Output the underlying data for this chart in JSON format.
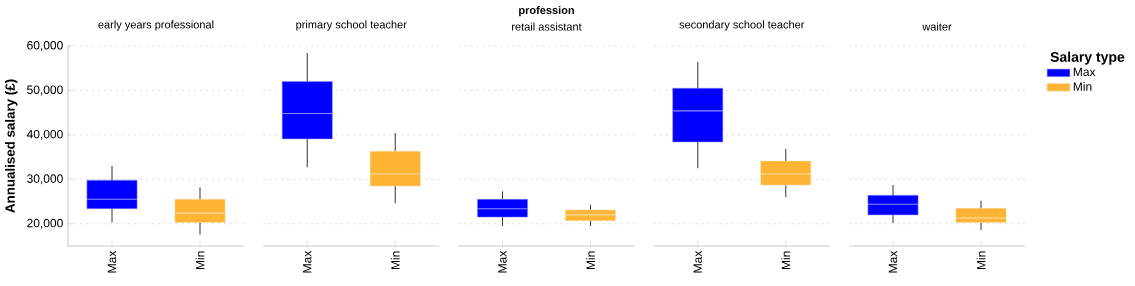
{
  "chart_data": [
    {
      "type": "box",
      "title": "early years professional",
      "ylabel": "Annualised salary (£)",
      "categories": [
        "Max",
        "Min"
      ],
      "series": [
        {
          "color": "#0000ff",
          "boxes": [
            {
              "low": 20300,
              "q1": 23400,
              "median": 25500,
              "q3": 29800,
              "high": 33000
            },
            null
          ]
        },
        {
          "color": "#fdb333",
          "boxes": [
            null,
            {
              "low": 17600,
              "q1": 20300,
              "median": 22400,
              "q3": 25500,
              "high": 28200
            }
          ]
        }
      ],
      "ylim": [
        15000,
        60000
      ],
      "yticks": [
        {
          "value": 20000,
          "label": "20,000"
        },
        {
          "value": 30000,
          "label": "30,000"
        },
        {
          "value": 40000,
          "label": "40,000"
        },
        {
          "value": 50000,
          "label": "50,000"
        },
        {
          "value": 60000,
          "label": "60,000"
        }
      ],
      "grid": "y"
    },
    {
      "type": "box",
      "title": "primary school teacher",
      "categories": [
        "Max",
        "Min"
      ],
      "series": [
        {
          "color": "#0000ff",
          "boxes": [
            {
              "low": 32700,
              "q1": 39100,
              "median": 44800,
              "q3": 52000,
              "high": 58400
            },
            null
          ]
        },
        {
          "color": "#fdb333",
          "boxes": [
            null,
            {
              "low": 24600,
              "q1": 28500,
              "median": 31200,
              "q3": 36300,
              "high": 40400
            }
          ]
        }
      ],
      "ylim": [
        15000,
        60000
      ],
      "yticks": [
        20000,
        30000,
        40000,
        50000,
        60000
      ],
      "grid": "y",
      "tick_labels": "x"
    },
    {
      "type": "box",
      "title": "retail assistant",
      "annotations": [
        "profession"
      ],
      "categories": [
        "Max",
        "Min"
      ],
      "series": [
        {
          "color": "#0000ff",
          "boxes": [
            {
              "low": 19500,
              "q1": 21500,
              "median": 23400,
              "q3": 25500,
              "high": 27300
            },
            null
          ]
        },
        {
          "color": "#fdb333",
          "boxes": [
            null,
            {
              "low": 19500,
              "q1": 20700,
              "median": 22000,
              "q3": 23100,
              "high": 24300
            }
          ]
        }
      ],
      "ylim": [
        15000,
        60000
      ],
      "yticks": [
        20000,
        30000,
        40000,
        50000,
        60000
      ],
      "grid": "y",
      "tick_labels": "x"
    },
    {
      "type": "box",
      "title": "secondary school teacher",
      "categories": [
        "Max",
        "Min"
      ],
      "series": [
        {
          "color": "#0000ff",
          "boxes": [
            {
              "low": 32500,
              "q1": 38400,
              "median": 45400,
              "q3": 50500,
              "high": 56400
            },
            null
          ]
        },
        {
          "color": "#fdb333",
          "boxes": [
            null,
            {
              "low": 26000,
              "q1": 28700,
              "median": 31200,
              "q3": 34100,
              "high": 36900
            }
          ]
        }
      ],
      "ylim": [
        15000,
        60000
      ],
      "yticks": [
        20000,
        30000,
        40000,
        50000,
        60000
      ],
      "grid": "y",
      "tick_labels": "x"
    },
    {
      "type": "box",
      "title": "waiter",
      "legend": "right",
      "legend_title": "Salary type",
      "categories": [
        "Max",
        "Min"
      ],
      "series": [
        {
          "name": "Max",
          "color": "#0000ff",
          "boxes": [
            {
              "low": 20200,
              "q1": 22000,
              "median": 24400,
              "q3": 26400,
              "high": 28700
            },
            null
          ]
        },
        {
          "name": "Min",
          "color": "#fdb333",
          "boxes": [
            null,
            {
              "low": 18600,
              "q1": 20300,
              "median": 21300,
              "q3": 23500,
              "high": 25200
            }
          ]
        }
      ],
      "ylim": [
        15000,
        60000
      ],
      "yticks": [
        20000,
        30000,
        40000,
        50000,
        60000
      ],
      "grid": "y",
      "tick_labels": "x"
    }
  ]
}
